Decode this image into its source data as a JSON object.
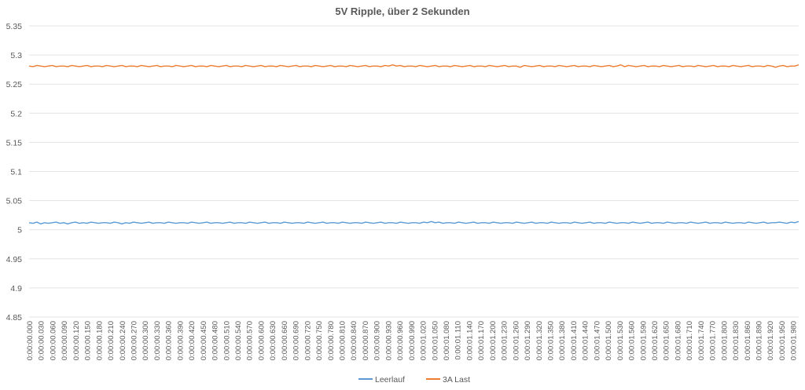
{
  "chart_data": {
    "type": "line",
    "title": "5V Ripple, über 2 Sekunden",
    "xlabel": "",
    "ylabel": "",
    "ylim": [
      4.85,
      5.35
    ],
    "yticks": [
      5.35,
      5.3,
      5.25,
      5.2,
      5.15,
      5.1,
      5.05,
      5,
      4.95,
      4.9,
      4.85
    ],
    "ytick_labels": [
      "5.35",
      "5.3",
      "5.25",
      "5.2",
      "5.15",
      "5.1",
      "5.05",
      "5",
      "4.95",
      "4.9",
      "4.85"
    ],
    "x_tick_labels": [
      "0:00:00.000",
      "0:00:00.030",
      "0:00:00.060",
      "0:00:00.090",
      "0:00:00.120",
      "0:00:00.150",
      "0:00:00.180",
      "0:00:00.210",
      "0:00:00.240",
      "0:00:00.270",
      "0:00:00.300",
      "0:00:00.330",
      "0:00:00.360",
      "0:00:00.390",
      "0:00:00.420",
      "0:00:00.450",
      "0:00:00.480",
      "0:00:00.510",
      "0:00:00.540",
      "0:00:00.570",
      "0:00:00.600",
      "0:00:00.630",
      "0:00:00.660",
      "0:00:00.690",
      "0:00:00.720",
      "0:00:00.750",
      "0:00:00.780",
      "0:00:00.810",
      "0:00:00.840",
      "0:00:00.870",
      "0:00:00.900",
      "0:00:00.930",
      "0:00:00.960",
      "0:00:00.990",
      "0:00:01.020",
      "0:00:01.050",
      "0:00:01.080",
      "0:00:01.110",
      "0:00:01.140",
      "0:00:01.170",
      "0:00:01.200",
      "0:00:01.230",
      "0:00:01.260",
      "0:00:01.290",
      "0:00:01.320",
      "0:00:01.350",
      "0:00:01.380",
      "0:00:01.410",
      "0:00:01.440",
      "0:00:01.470",
      "0:00:01.500",
      "0:00:01.530",
      "0:00:01.560",
      "0:00:01.590",
      "0:00:01.620",
      "0:00:01.650",
      "0:00:01.680",
      "0:00:01.710",
      "0:00:01.740",
      "0:00:01.770",
      "0:00:01.800",
      "0:00:01.830",
      "0:00:01.860",
      "0:00:01.890",
      "0:00:01.920",
      "0:00:01.950",
      "0:00:01.980"
    ],
    "series": [
      {
        "name": "Leerlauf",
        "color": "#5b9bd5",
        "x_start": 0,
        "x_step": 0.01,
        "values": [
          5.012,
          5.011,
          5.013,
          5.01,
          5.012,
          5.011,
          5.012,
          5.013,
          5.011,
          5.012,
          5.01,
          5.012,
          5.013,
          5.011,
          5.012,
          5.011,
          5.013,
          5.012,
          5.011,
          5.012,
          5.012,
          5.011,
          5.013,
          5.012,
          5.01,
          5.012,
          5.011,
          5.013,
          5.012,
          5.011,
          5.012,
          5.013,
          5.011,
          5.012,
          5.012,
          5.011,
          5.013,
          5.012,
          5.011,
          5.012,
          5.012,
          5.011,
          5.013,
          5.012,
          5.011,
          5.012,
          5.013,
          5.011,
          5.012,
          5.012,
          5.011,
          5.012,
          5.013,
          5.011,
          5.012,
          5.012,
          5.011,
          5.013,
          5.012,
          5.011,
          5.012,
          5.013,
          5.011,
          5.012,
          5.012,
          5.011,
          5.013,
          5.012,
          5.011,
          5.012,
          5.012,
          5.011,
          5.013,
          5.012,
          5.011,
          5.012,
          5.013,
          5.011,
          5.012,
          5.012,
          5.011,
          5.013,
          5.012,
          5.011,
          5.012,
          5.012,
          5.011,
          5.013,
          5.012,
          5.011,
          5.012,
          5.013,
          5.011,
          5.012,
          5.012,
          5.011,
          5.013,
          5.012,
          5.011,
          5.012,
          5.012,
          5.011,
          5.013,
          5.012,
          5.014,
          5.012,
          5.013,
          5.011,
          5.012,
          5.012,
          5.011,
          5.013,
          5.012,
          5.011,
          5.012,
          5.013,
          5.011,
          5.012,
          5.012,
          5.011,
          5.013,
          5.012,
          5.011,
          5.012,
          5.012,
          5.011,
          5.013,
          5.012,
          5.011,
          5.012,
          5.013,
          5.011,
          5.012,
          5.012,
          5.011,
          5.013,
          5.012,
          5.011,
          5.012,
          5.012,
          5.011,
          5.013,
          5.012,
          5.011,
          5.012,
          5.013,
          5.011,
          5.012,
          5.012,
          5.011,
          5.013,
          5.012,
          5.011,
          5.012,
          5.012,
          5.011,
          5.013,
          5.012,
          5.011,
          5.012,
          5.013,
          5.011,
          5.012,
          5.012,
          5.011,
          5.013,
          5.012,
          5.011,
          5.012,
          5.012,
          5.011,
          5.013,
          5.012,
          5.011,
          5.012,
          5.013,
          5.011,
          5.012,
          5.012,
          5.011,
          5.013,
          5.012,
          5.011,
          5.012,
          5.012,
          5.011,
          5.013,
          5.012,
          5.011,
          5.012,
          5.013,
          5.011,
          5.012,
          5.012,
          5.013,
          5.012,
          5.011,
          5.013,
          5.012,
          5.014
        ]
      },
      {
        "name": "3A Last",
        "color": "#ed7d31",
        "x_start": 0,
        "x_step": 0.01,
        "values": [
          5.281,
          5.28,
          5.282,
          5.281,
          5.28,
          5.281,
          5.282,
          5.28,
          5.281,
          5.281,
          5.28,
          5.282,
          5.281,
          5.28,
          5.281,
          5.282,
          5.28,
          5.281,
          5.281,
          5.28,
          5.282,
          5.281,
          5.28,
          5.281,
          5.282,
          5.28,
          5.281,
          5.281,
          5.28,
          5.282,
          5.281,
          5.28,
          5.281,
          5.282,
          5.28,
          5.281,
          5.281,
          5.28,
          5.282,
          5.281,
          5.28,
          5.281,
          5.282,
          5.28,
          5.281,
          5.281,
          5.28,
          5.282,
          5.281,
          5.28,
          5.281,
          5.282,
          5.28,
          5.281,
          5.281,
          5.28,
          5.282,
          5.281,
          5.28,
          5.281,
          5.282,
          5.28,
          5.281,
          5.281,
          5.28,
          5.282,
          5.281,
          5.28,
          5.281,
          5.282,
          5.28,
          5.281,
          5.281,
          5.28,
          5.282,
          5.281,
          5.28,
          5.281,
          5.282,
          5.28,
          5.281,
          5.281,
          5.28,
          5.282,
          5.281,
          5.28,
          5.281,
          5.282,
          5.28,
          5.281,
          5.281,
          5.28,
          5.282,
          5.281,
          5.283,
          5.281,
          5.282,
          5.28,
          5.281,
          5.281,
          5.28,
          5.282,
          5.281,
          5.28,
          5.281,
          5.282,
          5.28,
          5.281,
          5.281,
          5.28,
          5.282,
          5.281,
          5.28,
          5.281,
          5.282,
          5.28,
          5.281,
          5.281,
          5.28,
          5.282,
          5.281,
          5.28,
          5.281,
          5.282,
          5.28,
          5.281,
          5.281,
          5.279,
          5.282,
          5.281,
          5.28,
          5.281,
          5.282,
          5.28,
          5.281,
          5.281,
          5.28,
          5.282,
          5.281,
          5.28,
          5.281,
          5.282,
          5.28,
          5.281,
          5.281,
          5.28,
          5.282,
          5.281,
          5.28,
          5.281,
          5.282,
          5.28,
          5.281,
          5.283,
          5.28,
          5.282,
          5.281,
          5.28,
          5.281,
          5.282,
          5.28,
          5.281,
          5.281,
          5.28,
          5.282,
          5.281,
          5.28,
          5.281,
          5.282,
          5.28,
          5.281,
          5.281,
          5.28,
          5.282,
          5.281,
          5.28,
          5.281,
          5.282,
          5.28,
          5.281,
          5.281,
          5.28,
          5.282,
          5.281,
          5.28,
          5.281,
          5.282,
          5.28,
          5.281,
          5.281,
          5.28,
          5.282,
          5.281,
          5.279,
          5.281,
          5.282,
          5.28,
          5.281,
          5.281,
          5.283
        ]
      }
    ],
    "grid": true,
    "legend": "bottom"
  }
}
